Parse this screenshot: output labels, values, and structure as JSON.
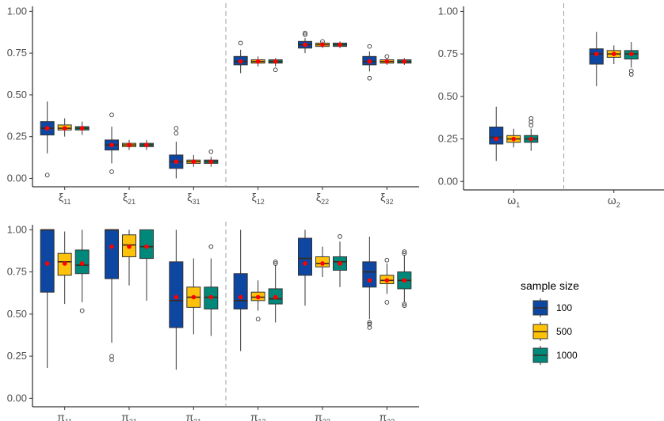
{
  "chart_data": [
    {
      "type": "box",
      "categories": [
        {
          "base": "ξ",
          "sub": "11"
        },
        {
          "base": "ξ",
          "sub": "21"
        },
        {
          "base": "ξ",
          "sub": "31"
        },
        {
          "base": "ξ",
          "sub": "12"
        },
        {
          "base": "ξ",
          "sub": "22"
        },
        {
          "base": "ξ",
          "sub": "32"
        }
      ],
      "ylim": [
        -0.05,
        1.03
      ],
      "yticks": [
        "0.00",
        "0.25",
        "0.50",
        "0.75",
        "1.00"
      ],
      "divider_after": 3,
      "series": [
        {
          "name": "100",
          "boxes": [
            {
              "q1": 0.26,
              "med": 0.3,
              "q3": 0.34,
              "lo": 0.15,
              "hi": 0.46,
              "mean": 0.3,
              "out": [
                0.02
              ]
            },
            {
              "q1": 0.17,
              "med": 0.2,
              "q3": 0.23,
              "lo": 0.09,
              "hi": 0.31,
              "mean": 0.2,
              "out": [
                0.04,
                0.38
              ]
            },
            {
              "q1": 0.06,
              "med": 0.1,
              "q3": 0.14,
              "lo": 0.0,
              "hi": 0.22,
              "mean": 0.1,
              "out": [
                0.27,
                0.3
              ]
            },
            {
              "q1": 0.68,
              "med": 0.7,
              "q3": 0.73,
              "lo": 0.63,
              "hi": 0.77,
              "mean": 0.7,
              "out": [
                0.81
              ]
            },
            {
              "q1": 0.78,
              "med": 0.8,
              "q3": 0.82,
              "lo": 0.75,
              "hi": 0.84,
              "mean": 0.8,
              "out": [
                0.86,
                0.87
              ]
            },
            {
              "q1": 0.68,
              "med": 0.7,
              "q3": 0.73,
              "lo": 0.64,
              "hi": 0.76,
              "mean": 0.7,
              "out": [
                0.6,
                0.79
              ]
            }
          ]
        },
        {
          "name": "500",
          "boxes": [
            {
              "q1": 0.29,
              "med": 0.3,
              "q3": 0.32,
              "lo": 0.25,
              "hi": 0.36,
              "mean": 0.3,
              "out": []
            },
            {
              "q1": 0.19,
              "med": 0.2,
              "q3": 0.21,
              "lo": 0.17,
              "hi": 0.23,
              "mean": 0.2,
              "out": []
            },
            {
              "q1": 0.09,
              "med": 0.1,
              "q3": 0.11,
              "lo": 0.07,
              "hi": 0.14,
              "mean": 0.1,
              "out": []
            },
            {
              "q1": 0.69,
              "med": 0.7,
              "q3": 0.71,
              "lo": 0.67,
              "hi": 0.73,
              "mean": 0.7,
              "out": []
            },
            {
              "q1": 0.79,
              "med": 0.8,
              "q3": 0.81,
              "lo": 0.78,
              "hi": 0.82,
              "mean": 0.8,
              "out": [
                0.82
              ]
            },
            {
              "q1": 0.69,
              "med": 0.7,
              "q3": 0.71,
              "lo": 0.68,
              "hi": 0.72,
              "mean": 0.7,
              "out": [
                0.73
              ]
            }
          ]
        },
        {
          "name": "1000",
          "boxes": [
            {
              "q1": 0.29,
              "med": 0.3,
              "q3": 0.31,
              "lo": 0.26,
              "hi": 0.34,
              "mean": 0.3,
              "out": []
            },
            {
              "q1": 0.19,
              "med": 0.2,
              "q3": 0.21,
              "lo": 0.17,
              "hi": 0.23,
              "mean": 0.2,
              "out": []
            },
            {
              "q1": 0.09,
              "med": 0.1,
              "q3": 0.11,
              "lo": 0.07,
              "hi": 0.13,
              "mean": 0.1,
              "out": [
                0.16
              ]
            },
            {
              "q1": 0.69,
              "med": 0.7,
              "q3": 0.71,
              "lo": 0.67,
              "hi": 0.72,
              "mean": 0.7,
              "out": [
                0.65
              ]
            },
            {
              "q1": 0.79,
              "med": 0.8,
              "q3": 0.81,
              "lo": 0.78,
              "hi": 0.82,
              "mean": 0.8,
              "out": []
            },
            {
              "q1": 0.69,
              "med": 0.7,
              "q3": 0.71,
              "lo": 0.68,
              "hi": 0.72,
              "mean": 0.7,
              "out": []
            }
          ]
        }
      ]
    },
    {
      "type": "box",
      "categories": [
        {
          "base": "ω",
          "sub": "1"
        },
        {
          "base": "ω",
          "sub": "2"
        }
      ],
      "ylim": [
        -0.05,
        1.03
      ],
      "yticks": [
        "0.00",
        "0.25",
        "0.50",
        "0.75",
        "1.00"
      ],
      "divider_after": 1,
      "series": [
        {
          "name": "100",
          "boxes": [
            {
              "q1": 0.22,
              "med": 0.26,
              "q3": 0.32,
              "lo": 0.12,
              "hi": 0.44,
              "mean": 0.25,
              "out": []
            },
            {
              "q1": 0.69,
              "med": 0.75,
              "q3": 0.78,
              "lo": 0.56,
              "hi": 0.88,
              "mean": 0.75,
              "out": []
            }
          ]
        },
        {
          "name": "500",
          "boxes": [
            {
              "q1": 0.23,
              "med": 0.25,
              "q3": 0.27,
              "lo": 0.2,
              "hi": 0.31,
              "mean": 0.25,
              "out": []
            },
            {
              "q1": 0.73,
              "med": 0.75,
              "q3": 0.77,
              "lo": 0.69,
              "hi": 0.8,
              "mean": 0.75,
              "out": []
            }
          ]
        },
        {
          "name": "1000",
          "boxes": [
            {
              "q1": 0.23,
              "med": 0.25,
              "q3": 0.27,
              "lo": 0.18,
              "hi": 0.31,
              "mean": 0.25,
              "out": [
                0.33,
                0.35,
                0.37
              ]
            },
            {
              "q1": 0.72,
              "med": 0.75,
              "q3": 0.77,
              "lo": 0.67,
              "hi": 0.82,
              "mean": 0.75,
              "out": [
                0.63,
                0.65
              ]
            }
          ]
        }
      ]
    },
    {
      "type": "box",
      "categories": [
        {
          "base": "π",
          "sub": "11"
        },
        {
          "base": "π",
          "sub": "21"
        },
        {
          "base": "π",
          "sub": "31"
        },
        {
          "base": "π",
          "sub": "12"
        },
        {
          "base": "π",
          "sub": "22"
        },
        {
          "base": "π",
          "sub": "32"
        }
      ],
      "ylim": [
        -0.05,
        1.03
      ],
      "yticks": [
        "0.00",
        "0.25",
        "0.50",
        "0.75",
        "1.00"
      ],
      "divider_after": 3,
      "series": [
        {
          "name": "100",
          "boxes": [
            {
              "q1": 0.63,
              "med": 1.0,
              "q3": 1.0,
              "lo": 0.18,
              "hi": 1.0,
              "mean": 0.8,
              "out": []
            },
            {
              "q1": 0.71,
              "med": 1.0,
              "q3": 1.0,
              "lo": 0.33,
              "hi": 1.0,
              "mean": 0.9,
              "out": [
                0.23,
                0.25
              ]
            },
            {
              "q1": 0.42,
              "med": 0.58,
              "q3": 0.81,
              "lo": 0.17,
              "hi": 1.0,
              "mean": 0.6,
              "out": []
            },
            {
              "q1": 0.53,
              "med": 0.58,
              "q3": 0.74,
              "lo": 0.28,
              "hi": 1.0,
              "mean": 0.6,
              "out": []
            },
            {
              "q1": 0.73,
              "med": 0.83,
              "q3": 0.95,
              "lo": 0.55,
              "hi": 1.0,
              "mean": 0.8,
              "out": []
            },
            {
              "q1": 0.66,
              "med": 0.75,
              "q3": 0.81,
              "lo": 0.47,
              "hi": 0.96,
              "mean": 0.7,
              "out": [
                0.42,
                0.44,
                0.45
              ]
            }
          ]
        },
        {
          "name": "500",
          "boxes": [
            {
              "q1": 0.73,
              "med": 0.81,
              "q3": 0.86,
              "lo": 0.56,
              "hi": 0.99,
              "mean": 0.8,
              "out": []
            },
            {
              "q1": 0.84,
              "med": 0.91,
              "q3": 0.97,
              "lo": 0.67,
              "hi": 1.0,
              "mean": 0.9,
              "out": []
            },
            {
              "q1": 0.54,
              "med": 0.6,
              "q3": 0.66,
              "lo": 0.38,
              "hi": 0.83,
              "mean": 0.6,
              "out": []
            },
            {
              "q1": 0.58,
              "med": 0.6,
              "q3": 0.63,
              "lo": 0.52,
              "hi": 0.7,
              "mean": 0.6,
              "out": [
                0.47
              ]
            },
            {
              "q1": 0.78,
              "med": 0.8,
              "q3": 0.84,
              "lo": 0.72,
              "hi": 0.9,
              "mean": 0.8,
              "out": []
            },
            {
              "q1": 0.68,
              "med": 0.7,
              "q3": 0.73,
              "lo": 0.62,
              "hi": 0.8,
              "mean": 0.7,
              "out": [
                0.57,
                0.82
              ]
            }
          ]
        },
        {
          "name": "1000",
          "boxes": [
            {
              "q1": 0.74,
              "med": 0.79,
              "q3": 0.88,
              "lo": 0.57,
              "hi": 1.0,
              "mean": 0.8,
              "out": [
                0.52
              ]
            },
            {
              "q1": 0.83,
              "med": 0.9,
              "q3": 1.0,
              "lo": 0.58,
              "hi": 1.0,
              "mean": 0.9,
              "out": []
            },
            {
              "q1": 0.53,
              "med": 0.6,
              "q3": 0.66,
              "lo": 0.37,
              "hi": 0.83,
              "mean": 0.6,
              "out": [
                0.9
              ]
            },
            {
              "q1": 0.56,
              "med": 0.59,
              "q3": 0.65,
              "lo": 0.45,
              "hi": 0.79,
              "mean": 0.6,
              "out": [
                0.8,
                0.81
              ]
            },
            {
              "q1": 0.76,
              "med": 0.81,
              "q3": 0.84,
              "lo": 0.66,
              "hi": 0.93,
              "mean": 0.8,
              "out": [
                0.96
              ]
            },
            {
              "q1": 0.65,
              "med": 0.7,
              "q3": 0.75,
              "lo": 0.57,
              "hi": 0.85,
              "mean": 0.7,
              "out": [
                0.55,
                0.56,
                0.86,
                0.87
              ]
            }
          ]
        }
      ]
    }
  ],
  "legend": {
    "title": "sample size",
    "placement": "right",
    "items": [
      {
        "label": "100",
        "color": "#0D47A1"
      },
      {
        "label": "500",
        "color": "#FFC20A"
      },
      {
        "label": "1000",
        "color": "#00897B"
      }
    ]
  },
  "colors": {
    "mean_point": "#FF0000",
    "median_line": "#3a2a1a",
    "axis": "#000000",
    "tick_text": "#4d4d4d",
    "divider": "#9e9e9e"
  }
}
